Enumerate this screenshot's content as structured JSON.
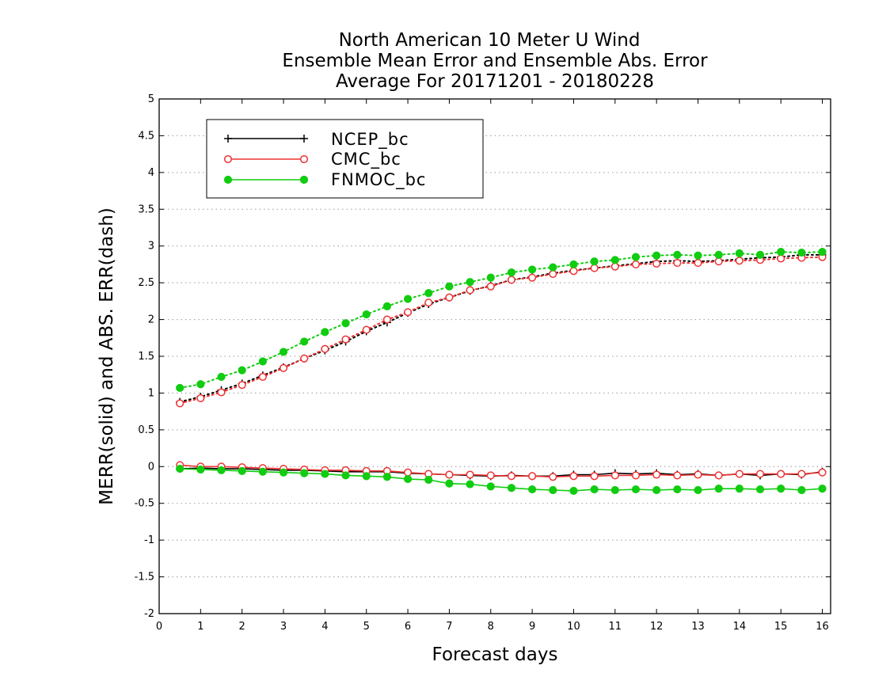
{
  "chart_data": {
    "type": "line",
    "title": [
      "North American 10 Meter U Wind",
      "Ensemble Mean Error and Ensemble Abs. Error",
      "Average For 20171201 - 20180228"
    ],
    "xlabel": "Forecast days",
    "ylabel": "MERR(solid) and ABS. ERR(dash)",
    "xlim": [
      0,
      16.2
    ],
    "ylim": [
      -2,
      5
    ],
    "xticks": [
      0,
      1,
      2,
      3,
      4,
      5,
      6,
      7,
      8,
      9,
      10,
      11,
      12,
      13,
      14,
      15,
      16
    ],
    "yticks": [
      -2,
      -1.5,
      -1,
      -0.5,
      0,
      0.5,
      1,
      1.5,
      2,
      2.5,
      3,
      3.5,
      4,
      4.5,
      5
    ],
    "ytick_labels": [
      "-2",
      "-1.5",
      "-1",
      "-0.5",
      "0",
      "0.5",
      "1",
      "1.5",
      "2",
      "2.5",
      "3",
      "3.5",
      "4",
      "4.5",
      "5"
    ],
    "grid": "horizontal dotted",
    "legend_position": "top-left",
    "x": [
      0.5,
      1,
      1.5,
      2,
      2.5,
      3,
      3.5,
      4,
      4.5,
      5,
      5.5,
      6,
      6.5,
      7,
      7.5,
      8,
      8.5,
      9,
      9.5,
      10,
      10.5,
      11,
      11.5,
      12,
      12.5,
      13,
      13.5,
      14,
      14.5,
      15,
      15.5,
      16
    ],
    "series": [
      {
        "name": "NCEP_bc",
        "color": "#000000",
        "marker": "plus",
        "merr": [
          -0.03,
          -0.02,
          -0.03,
          -0.03,
          -0.04,
          -0.05,
          -0.05,
          -0.06,
          -0.07,
          -0.07,
          -0.07,
          -0.09,
          -0.1,
          -0.11,
          -0.12,
          -0.13,
          -0.12,
          -0.13,
          -0.13,
          -0.11,
          -0.11,
          -0.09,
          -0.1,
          -0.09,
          -0.11,
          -0.1,
          -0.12,
          -0.1,
          -0.12,
          -0.1,
          -0.11,
          -0.07
        ],
        "abs": [
          0.88,
          0.95,
          1.04,
          1.13,
          1.24,
          1.35,
          1.47,
          1.58,
          1.7,
          1.84,
          1.96,
          2.09,
          2.21,
          2.3,
          2.39,
          2.46,
          2.54,
          2.58,
          2.63,
          2.67,
          2.7,
          2.73,
          2.76,
          2.79,
          2.8,
          2.79,
          2.8,
          2.82,
          2.84,
          2.85,
          2.88,
          2.88
        ]
      },
      {
        "name": "CMC_bc",
        "color": "#ee3333",
        "marker": "open-circle",
        "merr": [
          0.02,
          0.0,
          0.0,
          -0.01,
          -0.02,
          -0.03,
          -0.04,
          -0.05,
          -0.05,
          -0.06,
          -0.06,
          -0.08,
          -0.1,
          -0.11,
          -0.11,
          -0.12,
          -0.13,
          -0.13,
          -0.14,
          -0.13,
          -0.13,
          -0.12,
          -0.12,
          -0.11,
          -0.12,
          -0.11,
          -0.12,
          -0.1,
          -0.1,
          -0.1,
          -0.1,
          -0.08
        ],
        "abs": [
          0.86,
          0.93,
          1.01,
          1.11,
          1.22,
          1.34,
          1.47,
          1.6,
          1.73,
          1.86,
          2.0,
          2.1,
          2.23,
          2.3,
          2.4,
          2.45,
          2.54,
          2.57,
          2.62,
          2.66,
          2.7,
          2.72,
          2.75,
          2.76,
          2.77,
          2.77,
          2.79,
          2.8,
          2.81,
          2.83,
          2.84,
          2.85
        ]
      },
      {
        "name": "FNMOC_bc",
        "color": "#11cc11",
        "marker": "filled-circle",
        "merr": [
          -0.03,
          -0.04,
          -0.05,
          -0.06,
          -0.07,
          -0.08,
          -0.09,
          -0.1,
          -0.12,
          -0.13,
          -0.14,
          -0.17,
          -0.18,
          -0.23,
          -0.24,
          -0.27,
          -0.29,
          -0.31,
          -0.32,
          -0.33,
          -0.31,
          -0.32,
          -0.31,
          -0.32,
          -0.31,
          -0.32,
          -0.3,
          -0.3,
          -0.31,
          -0.3,
          -0.32,
          -0.3
        ],
        "abs": [
          1.07,
          1.12,
          1.22,
          1.31,
          1.43,
          1.56,
          1.7,
          1.83,
          1.95,
          2.07,
          2.18,
          2.28,
          2.36,
          2.45,
          2.51,
          2.57,
          2.64,
          2.68,
          2.71,
          2.75,
          2.79,
          2.81,
          2.85,
          2.87,
          2.88,
          2.87,
          2.88,
          2.9,
          2.88,
          2.92,
          2.91,
          2.92
        ]
      }
    ]
  }
}
